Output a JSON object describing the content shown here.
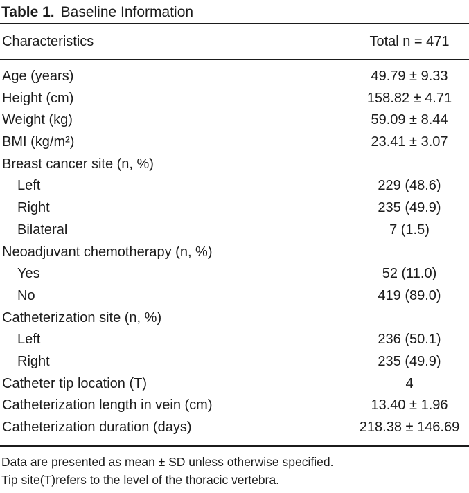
{
  "table": {
    "title": {
      "bold": "Table 1.",
      "rest": "Baseline Information"
    },
    "header": {
      "label": "Characteristics",
      "value": "Total n = 471"
    },
    "rows": [
      {
        "label": "Age (years)",
        "value": "49.79 ± 9.33",
        "indent": false
      },
      {
        "label": "Height (cm)",
        "value": "158.82 ± 4.71",
        "indent": false
      },
      {
        "label": "Weight (kg)",
        "value": "59.09 ± 8.44",
        "indent": false
      },
      {
        "label": "BMI (kg/m²)",
        "value": "23.41 ± 3.07",
        "indent": false
      },
      {
        "label": "Breast cancer site (n, %)",
        "value": "",
        "indent": false
      },
      {
        "label": "Left",
        "value": "229 (48.6)",
        "indent": true
      },
      {
        "label": "Right",
        "value": "235 (49.9)",
        "indent": true
      },
      {
        "label": "Bilateral",
        "value": "7 (1.5)",
        "indent": true
      },
      {
        "label": "Neoadjuvant chemotherapy (n, %)",
        "value": "",
        "indent": false
      },
      {
        "label": "Yes",
        "value": "52 (11.0)",
        "indent": true
      },
      {
        "label": "No",
        "value": "419 (89.0)",
        "indent": true
      },
      {
        "label": "Catheterization site (n, %)",
        "value": "",
        "indent": false
      },
      {
        "label": "Left",
        "value": "236 (50.1)",
        "indent": true
      },
      {
        "label": "Right",
        "value": "235 (49.9)",
        "indent": true
      },
      {
        "label": "Catheter tip location (T)",
        "value": "4",
        "indent": false
      },
      {
        "label": "Catheterization length in vein (cm)",
        "value": "13.40 ± 1.96",
        "indent": false
      },
      {
        "label": "Catheterization duration (days)",
        "value": "218.38 ± 146.69",
        "indent": false
      }
    ],
    "footnotes": [
      "Data are presented as mean ± SD unless otherwise specified.",
      "Tip site(T)refers to the level of the thoracic vertebra."
    ]
  }
}
